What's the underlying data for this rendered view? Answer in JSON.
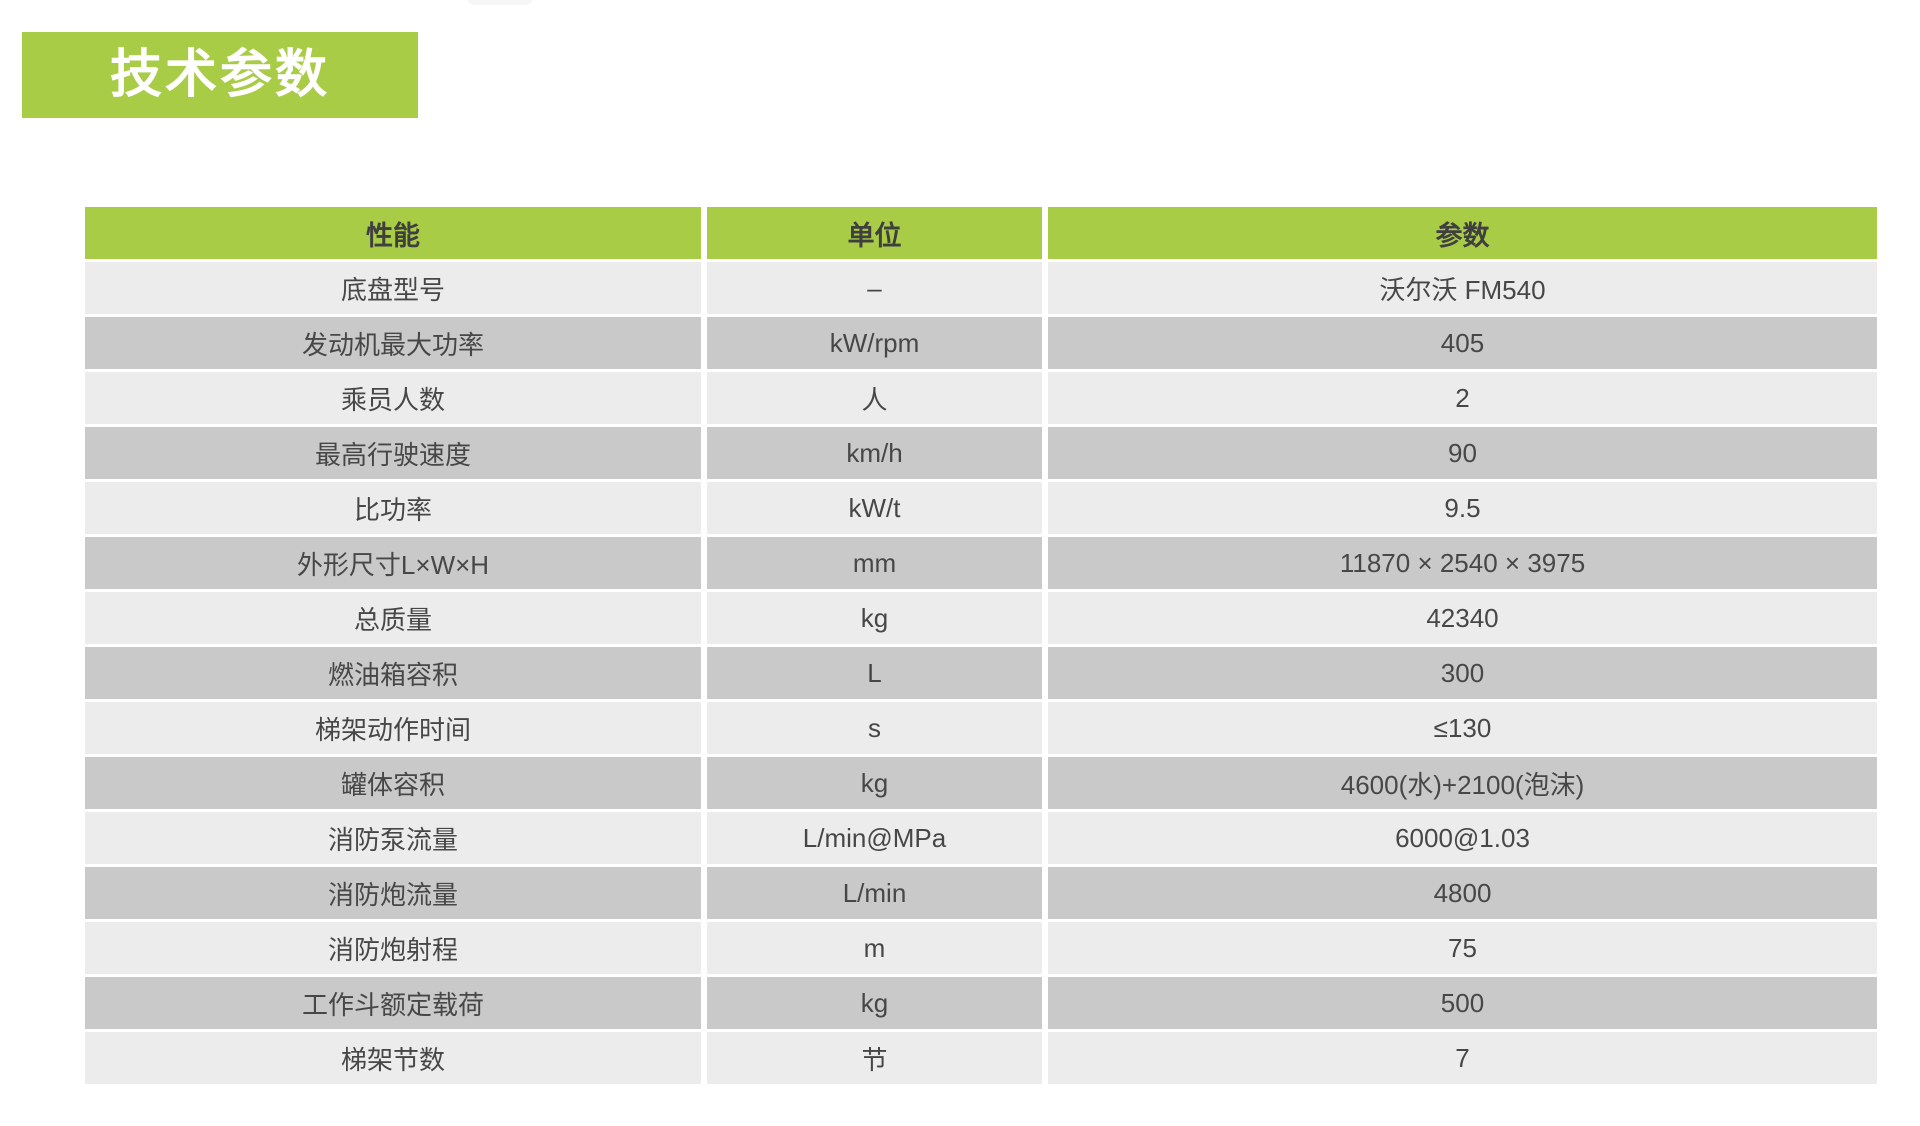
{
  "title": {
    "text": "技术参数"
  },
  "colors": {
    "accent_green": "#a9cc47",
    "header_text": "#3f3f3f",
    "row_odd_bg": "#ececec",
    "row_even_bg": "#c9c9c9",
    "cell_text": "#474747",
    "title_text": "#ffffff",
    "page_bg": "#ffffff"
  },
  "table": {
    "columns": [
      "性能",
      "单位",
      "参数"
    ],
    "rows": [
      [
        "底盘型号",
        "–",
        "沃尔沃 FM540"
      ],
      [
        "发动机最大功率",
        "kW/rpm",
        "405"
      ],
      [
        "乘员人数",
        "人",
        "2"
      ],
      [
        "最高行驶速度",
        "km/h",
        "90"
      ],
      [
        "比功率",
        "kW/t",
        "9.5"
      ],
      [
        "外形尺寸L×W×H",
        "mm",
        "11870 × 2540 × 3975"
      ],
      [
        "总质量",
        "kg",
        "42340"
      ],
      [
        "燃油箱容积",
        "L",
        "300"
      ],
      [
        "梯架动作时间",
        "s",
        "≤130"
      ],
      [
        "罐体容积",
        "kg",
        "4600(水)+2100(泡沫)"
      ],
      [
        "消防泵流量",
        "L/min@MPa",
        "6000@1.03"
      ],
      [
        "消防炮流量",
        "L/min",
        "4800"
      ],
      [
        "消防炮射程",
        "m",
        "75"
      ],
      [
        "工作斗额定载荷",
        "kg",
        "500"
      ],
      [
        "梯架节数",
        "节",
        "7"
      ]
    ]
  }
}
